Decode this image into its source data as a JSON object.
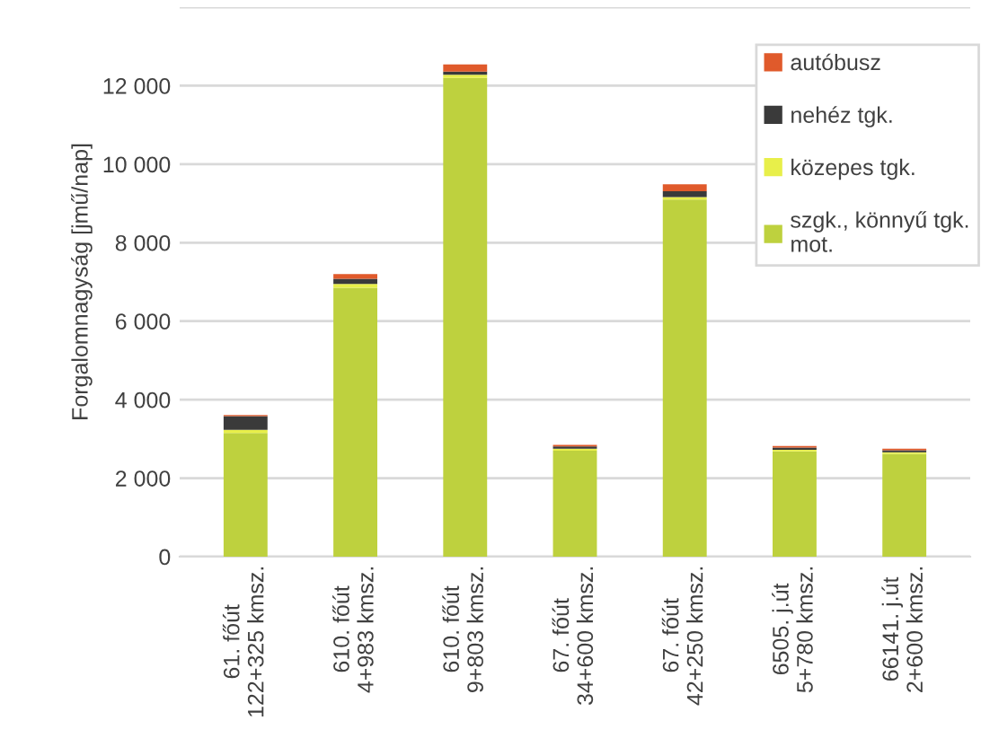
{
  "chart_data": {
    "type": "bar",
    "stacked": true,
    "ylabel": "Forgalomnagyság [jmű/nap]",
    "categories": [
      "61. főút\n122+325 kmsz.",
      "610. főút\n4+983 kmsz.",
      "610. főút\n9+803 kmsz.",
      "67. főút\n34+600 kmsz.",
      "67. főút\n42+250 kmsz.",
      "6505. j.út\n5+780 kmsz.",
      "66141. j.út\n2+600 kmsz."
    ],
    "series": [
      {
        "name": "szgk., könnyű tgk.\nmot.",
        "color": "#bed13e",
        "values": [
          3150,
          6850,
          12200,
          2700,
          9100,
          2680,
          2620
        ]
      },
      {
        "name": "közepes tgk.",
        "color": "#e8ef4a",
        "values": [
          80,
          100,
          80,
          50,
          60,
          40,
          40
        ]
      },
      {
        "name": "nehéz tgk.",
        "color": "#3a3a3a",
        "values": [
          350,
          130,
          80,
          60,
          150,
          60,
          50
        ]
      },
      {
        "name": "autóbusz",
        "color": "#e05a2b",
        "values": [
          30,
          120,
          180,
          40,
          180,
          40,
          40
        ]
      }
    ],
    "ylim": [
      0,
      14000
    ],
    "yticks": [
      {
        "value": 0,
        "label": "0"
      },
      {
        "value": 2000,
        "label": "2 000"
      },
      {
        "value": 4000,
        "label": "4 000"
      },
      {
        "value": 6000,
        "label": "6 000"
      },
      {
        "value": 8000,
        "label": "8 000"
      },
      {
        "value": 10000,
        "label": "10 000"
      },
      {
        "value": 12000,
        "label": "12 000"
      },
      {
        "value": 14000,
        "label": null
      }
    ],
    "grid": "y",
    "legend": "top right"
  }
}
